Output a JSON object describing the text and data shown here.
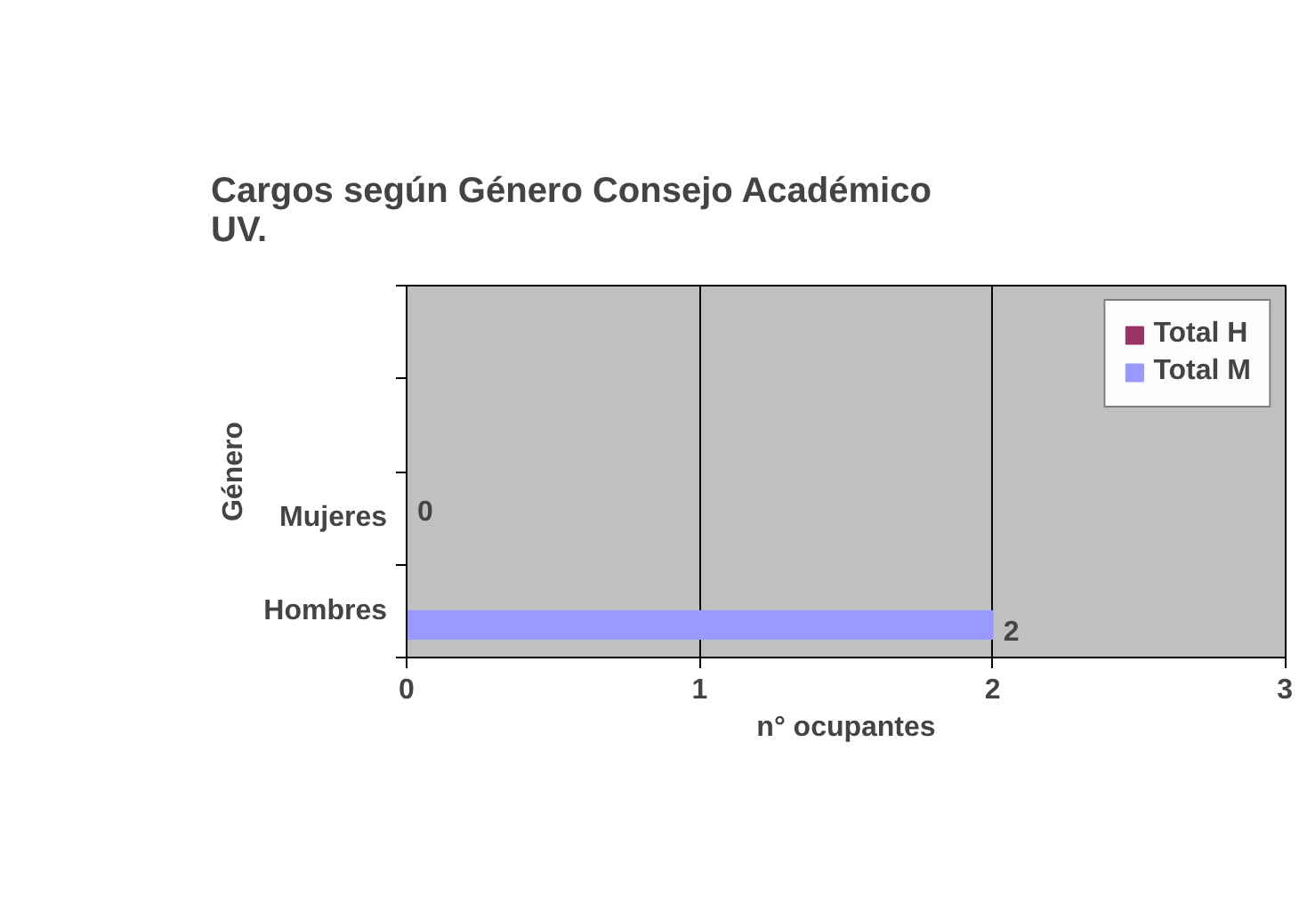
{
  "chart_data": {
    "type": "bar",
    "orientation": "horizontal",
    "title": "Cargos según Género Consejo Académico UV.",
    "xlabel": "n° ocupantes",
    "ylabel": "Género",
    "categories": [
      null,
      null,
      "Mujeres",
      "Hombres"
    ],
    "series": [
      {
        "name": "Total H",
        "color": "#993366",
        "values": [
          null,
          null,
          0,
          null
        ]
      },
      {
        "name": "Total M",
        "color": "#9999ff",
        "values": [
          null,
          null,
          null,
          2
        ]
      }
    ],
    "xlim": [
      0,
      3
    ],
    "xticks": [
      0,
      1,
      2,
      3
    ],
    "grid": "x",
    "legend": "right",
    "data_labels": true
  }
}
